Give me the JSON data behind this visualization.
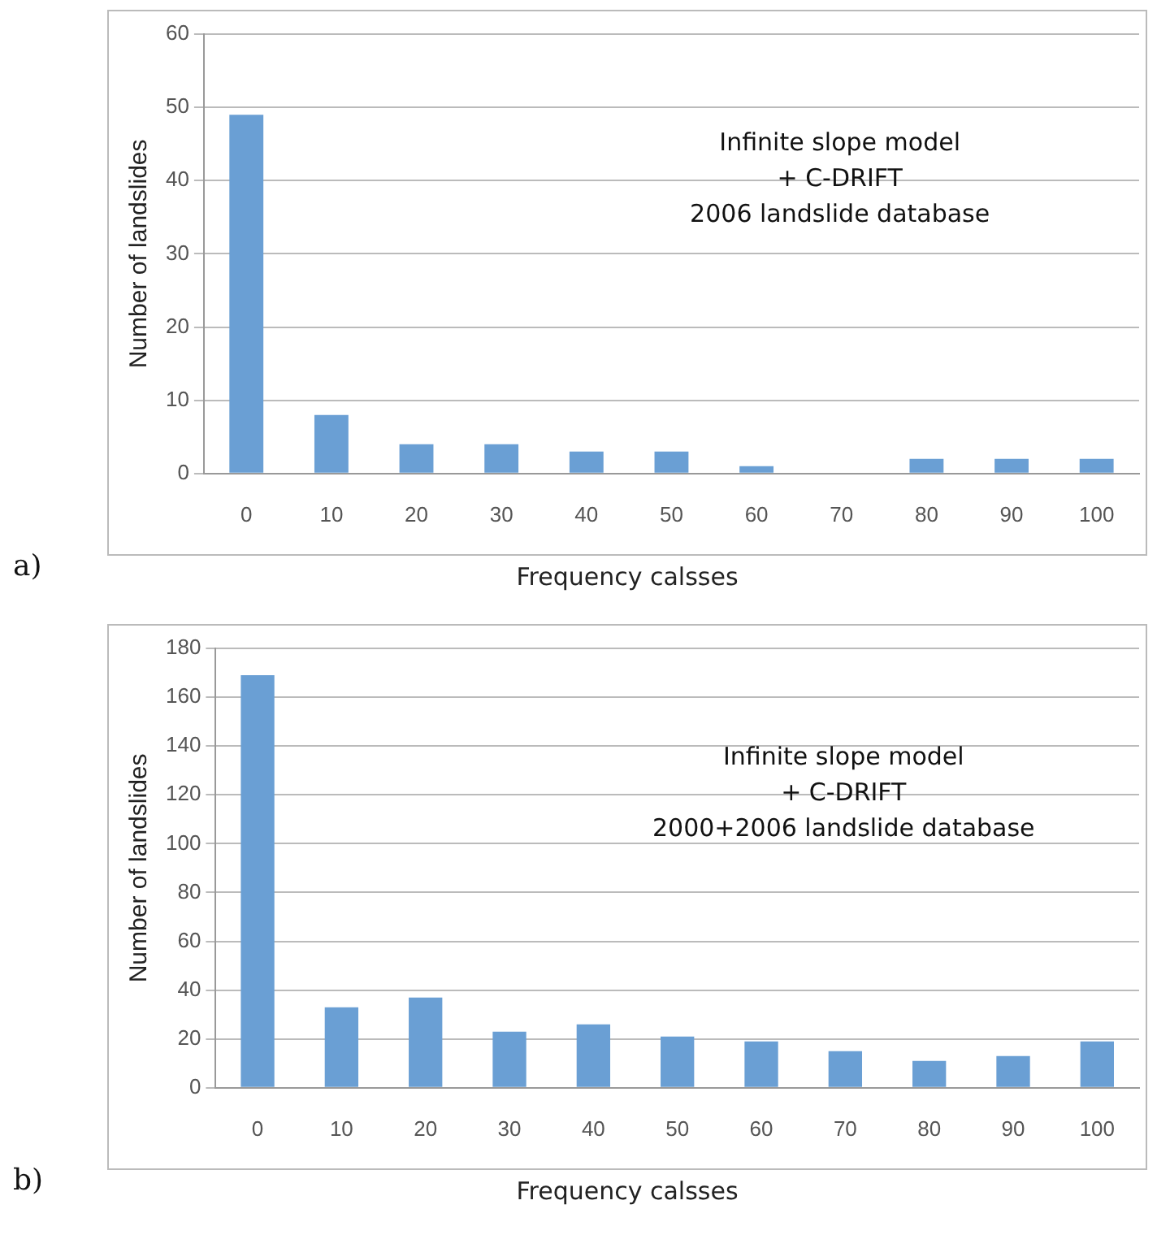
{
  "chart_data": [
    {
      "type": "bar",
      "categories": [
        "0",
        "10",
        "20",
        "30",
        "40",
        "50",
        "60",
        "70",
        "80",
        "90",
        "100"
      ],
      "values": [
        49,
        8,
        4,
        4,
        3,
        3,
        1,
        0,
        2,
        2,
        2
      ],
      "color": "#6a9fd4",
      "xlabel": "Frequency calsses",
      "ylabel": "Number of landslides",
      "ylim": [
        0,
        60
      ],
      "yticks": [
        0,
        10,
        20,
        30,
        40,
        50,
        60
      ],
      "grid": "y",
      "legend": false,
      "annotations": [
        "Infinite slope model",
        "+ C-DRIFT",
        "2006 landslide database",
        "a)"
      ]
    },
    {
      "type": "bar",
      "categories": [
        "0",
        "10",
        "20",
        "30",
        "40",
        "50",
        "60",
        "70",
        "80",
        "90",
        "100"
      ],
      "values": [
        169,
        33,
        37,
        23,
        26,
        21,
        19,
        15,
        11,
        13,
        19
      ],
      "color": "#6a9fd4",
      "xlabel": "Frequency calsses",
      "ylabel": "Number of landslides",
      "ylim": [
        0,
        180
      ],
      "yticks": [
        0,
        20,
        40,
        60,
        80,
        100,
        120,
        140,
        160,
        180
      ],
      "grid": "y",
      "legend": false,
      "annotations": [
        "Infinite slope model",
        "+ C-DRIFT",
        "2000+2006 landslide database",
        "b)"
      ]
    }
  ]
}
